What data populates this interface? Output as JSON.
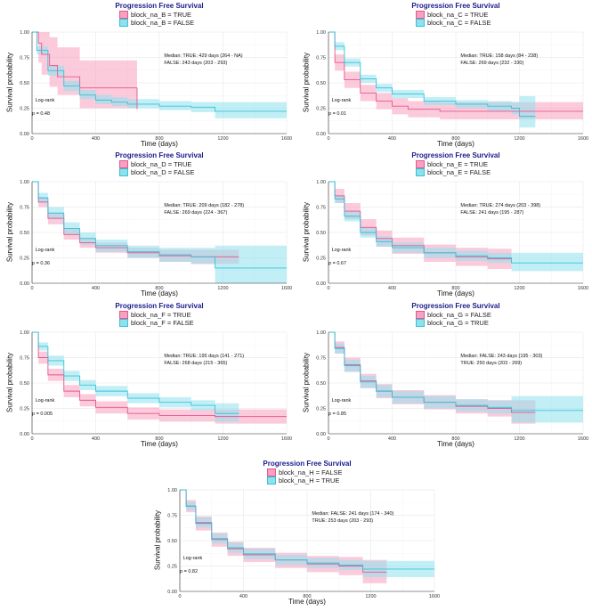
{
  "chart_data": [
    {
      "type": "line",
      "title": "Progression Free Survival",
      "xlabel": "Time (days)",
      "ylabel": "Survival probability",
      "xlim": [
        0,
        1600
      ],
      "ylim": [
        0,
        1
      ],
      "xticks": [
        "0",
        "400",
        "800",
        "1200",
        "1600"
      ],
      "yticks": [
        "0.00",
        "0.25",
        "0.50",
        "0.75",
        "1.00"
      ],
      "legend_position": "top",
      "grid": true,
      "test_label": "Log-rank",
      "p_value": "p = 0.48",
      "median_lines": [
        "Median: TRUE: 429 days (264 - NA)",
        "FALSE: 243 days (203 - 293)"
      ],
      "series": [
        {
          "name": "block_na_B = TRUE",
          "color": "#e8558c",
          "fill": "#f7a1c0",
          "x": [
            0,
            40,
            60,
            110,
            160,
            260,
            300,
            450,
            620,
            660
          ],
          "y": [
            1.0,
            0.89,
            0.78,
            0.67,
            0.56,
            0.56,
            0.45,
            0.45,
            0.45,
            0.24
          ],
          "lo": [
            1.0,
            0.7,
            0.58,
            0.46,
            0.38,
            0.38,
            0.25,
            0.25,
            0.25,
            0.05
          ],
          "hi": [
            1.0,
            1.0,
            1.0,
            0.95,
            0.85,
            0.85,
            0.72,
            0.72,
            0.72,
            0.55
          ]
        },
        {
          "name": "block_na_B = FALSE",
          "color": "#35c2d8",
          "fill": "#8fe1ee",
          "x": [
            0,
            30,
            100,
            200,
            300,
            400,
            500,
            600,
            800,
            1000,
            1150,
            1600
          ],
          "y": [
            1.0,
            0.82,
            0.62,
            0.47,
            0.38,
            0.33,
            0.31,
            0.29,
            0.27,
            0.26,
            0.22,
            0.22
          ],
          "lo": [
            1.0,
            0.78,
            0.57,
            0.42,
            0.34,
            0.29,
            0.27,
            0.25,
            0.23,
            0.21,
            0.15,
            0.15
          ],
          "hi": [
            1.0,
            0.86,
            0.67,
            0.52,
            0.43,
            0.38,
            0.36,
            0.34,
            0.32,
            0.31,
            0.31,
            0.31
          ]
        }
      ]
    },
    {
      "type": "line",
      "title": "Progression Free Survival",
      "xlabel": "Time (days)",
      "ylabel": "Survival probability",
      "xlim": [
        0,
        1600
      ],
      "ylim": [
        0,
        1
      ],
      "xticks": [
        "0",
        "400",
        "800",
        "1200",
        "1600"
      ],
      "yticks": [
        "0.00",
        "0.25",
        "0.50",
        "0.75",
        "1.00"
      ],
      "legend_position": "top",
      "grid": true,
      "test_label": "Log-rank",
      "p_value": "p = 0.01",
      "median_lines": [
        "Median: TRUE: 158 days (84 - 238)",
        "FALSE: 269 days (232 - 330)"
      ],
      "series": [
        {
          "name": "block_na_C = TRUE",
          "color": "#e8558c",
          "fill": "#f7a1c0",
          "x": [
            0,
            40,
            100,
            200,
            300,
            400,
            500,
            700,
            900,
            1100,
            1600
          ],
          "y": [
            1.0,
            0.7,
            0.53,
            0.4,
            0.32,
            0.27,
            0.24,
            0.22,
            0.22,
            0.22,
            0.22
          ],
          "lo": [
            1.0,
            0.62,
            0.45,
            0.32,
            0.24,
            0.19,
            0.16,
            0.14,
            0.14,
            0.14,
            0.14
          ],
          "hi": [
            1.0,
            0.78,
            0.61,
            0.48,
            0.4,
            0.35,
            0.32,
            0.31,
            0.31,
            0.31,
            0.31
          ]
        },
        {
          "name": "block_na_C = FALSE",
          "color": "#35c2d8",
          "fill": "#8fe1ee",
          "x": [
            0,
            40,
            100,
            200,
            300,
            400,
            600,
            800,
            1000,
            1150,
            1200,
            1300
          ],
          "y": [
            1.0,
            0.86,
            0.7,
            0.54,
            0.45,
            0.39,
            0.32,
            0.29,
            0.27,
            0.25,
            0.17,
            0.17
          ],
          "lo": [
            1.0,
            0.82,
            0.66,
            0.5,
            0.41,
            0.35,
            0.28,
            0.25,
            0.22,
            0.19,
            0.06,
            0.06
          ],
          "hi": [
            1.0,
            0.9,
            0.74,
            0.58,
            0.49,
            0.43,
            0.36,
            0.33,
            0.32,
            0.31,
            0.37,
            0.37
          ]
        }
      ]
    },
    {
      "type": "line",
      "title": "Progression Free Survival",
      "xlabel": "Time (days)",
      "ylabel": "Survival probability",
      "xlim": [
        0,
        1600
      ],
      "ylim": [
        0,
        1
      ],
      "xticks": [
        "0",
        "400",
        "800",
        "1200",
        "1600"
      ],
      "yticks": [
        "0.00",
        "0.25",
        "0.50",
        "0.75",
        "1.00"
      ],
      "legend_position": "top",
      "grid": true,
      "test_label": "Log-rank",
      "p_value": "p = 0.36",
      "median_lines": [
        "Median: TRUE: 209 days (182 - 278)",
        "FALSE: 269 days (224 - 367)"
      ],
      "series": [
        {
          "name": "block_na_D = TRUE",
          "color": "#e8558c",
          "fill": "#f7a1c0",
          "x": [
            0,
            40,
            100,
            200,
            300,
            400,
            600,
            800,
            1000,
            1300
          ],
          "y": [
            1.0,
            0.8,
            0.64,
            0.48,
            0.4,
            0.35,
            0.3,
            0.27,
            0.26,
            0.26
          ],
          "lo": [
            1.0,
            0.75,
            0.58,
            0.43,
            0.35,
            0.3,
            0.25,
            0.21,
            0.19,
            0.19
          ],
          "hi": [
            1.0,
            0.85,
            0.7,
            0.54,
            0.45,
            0.4,
            0.35,
            0.33,
            0.33,
            0.33
          ]
        },
        {
          "name": "block_na_D = FALSE",
          "color": "#35c2d8",
          "fill": "#8fe1ee",
          "x": [
            0,
            40,
            100,
            200,
            300,
            400,
            600,
            800,
            1000,
            1150,
            1600
          ],
          "y": [
            1.0,
            0.84,
            0.69,
            0.54,
            0.44,
            0.37,
            0.31,
            0.28,
            0.26,
            0.15,
            0.15
          ],
          "lo": [
            1.0,
            0.79,
            0.63,
            0.48,
            0.38,
            0.31,
            0.25,
            0.21,
            0.19,
            0.0,
            0.0
          ],
          "hi": [
            1.0,
            0.89,
            0.75,
            0.6,
            0.5,
            0.43,
            0.37,
            0.35,
            0.35,
            0.37,
            0.37
          ]
        }
      ]
    },
    {
      "type": "line",
      "title": "Progression Free Survival",
      "xlabel": "Time (days)",
      "ylabel": "Survival probability",
      "xlim": [
        0,
        1600
      ],
      "ylim": [
        0,
        1
      ],
      "xticks": [
        "0",
        "400",
        "800",
        "1200",
        "1600"
      ],
      "yticks": [
        "0.00",
        "0.25",
        "0.50",
        "0.75",
        "1.00"
      ],
      "legend_position": "top",
      "grid": true,
      "test_label": "Log-rank",
      "p_value": "p = 0.67",
      "median_lines": [
        "Median: TRUE: 274 days (203 - 398)",
        "FALSE: 241 days (195 - 287)"
      ],
      "series": [
        {
          "name": "block_na_E = TRUE",
          "color": "#e8558c",
          "fill": "#f7a1c0",
          "x": [
            0,
            40,
            100,
            200,
            300,
            400,
            600,
            800,
            1000,
            1150
          ],
          "y": [
            1.0,
            0.86,
            0.71,
            0.55,
            0.44,
            0.37,
            0.3,
            0.26,
            0.24,
            0.24
          ],
          "lo": [
            1.0,
            0.79,
            0.63,
            0.47,
            0.36,
            0.29,
            0.21,
            0.17,
            0.14,
            0.14
          ],
          "hi": [
            1.0,
            0.93,
            0.79,
            0.63,
            0.52,
            0.45,
            0.38,
            0.35,
            0.34,
            0.34
          ]
        },
        {
          "name": "block_na_E = FALSE",
          "color": "#35c2d8",
          "fill": "#8fe1ee",
          "x": [
            0,
            40,
            100,
            200,
            300,
            400,
            600,
            800,
            1000,
            1150,
            1600
          ],
          "y": [
            1.0,
            0.83,
            0.66,
            0.5,
            0.41,
            0.35,
            0.3,
            0.27,
            0.25,
            0.2,
            0.2
          ],
          "lo": [
            1.0,
            0.79,
            0.61,
            0.45,
            0.36,
            0.3,
            0.25,
            0.22,
            0.2,
            0.12,
            0.12
          ],
          "hi": [
            1.0,
            0.87,
            0.71,
            0.55,
            0.46,
            0.4,
            0.35,
            0.32,
            0.3,
            0.3,
            0.3
          ]
        }
      ]
    },
    {
      "type": "line",
      "title": "Progression Free Survival",
      "xlabel": "Time (days)",
      "ylabel": "Survival probability",
      "xlim": [
        0,
        1600
      ],
      "ylim": [
        0,
        1
      ],
      "xticks": [
        "0",
        "400",
        "800",
        "1200",
        "1600"
      ],
      "yticks": [
        "0.00",
        "0.25",
        "0.50",
        "0.75",
        "1.00"
      ],
      "legend_position": "top",
      "grid": true,
      "test_label": "Log-rank",
      "p_value": "p = 0.005",
      "median_lines": [
        "Median: TRUE: 195 days (141 - 271)",
        "FALSE: 268 days (215 - 365)"
      ],
      "series": [
        {
          "name": "block_na_F = TRUE",
          "color": "#e8558c",
          "fill": "#f7a1c0",
          "x": [
            0,
            40,
            100,
            200,
            300,
            400,
            600,
            800,
            1000,
            1150,
            1600
          ],
          "y": [
            1.0,
            0.75,
            0.58,
            0.42,
            0.33,
            0.26,
            0.2,
            0.18,
            0.18,
            0.17,
            0.17
          ],
          "lo": [
            1.0,
            0.69,
            0.52,
            0.36,
            0.27,
            0.2,
            0.14,
            0.12,
            0.12,
            0.1,
            0.1
          ],
          "hi": [
            1.0,
            0.81,
            0.64,
            0.48,
            0.39,
            0.32,
            0.26,
            0.24,
            0.24,
            0.24,
            0.24
          ]
        },
        {
          "name": "block_na_F = FALSE",
          "color": "#35c2d8",
          "fill": "#8fe1ee",
          "x": [
            0,
            40,
            100,
            200,
            300,
            400,
            600,
            800,
            1000,
            1150,
            1300
          ],
          "y": [
            1.0,
            0.86,
            0.72,
            0.57,
            0.48,
            0.42,
            0.35,
            0.31,
            0.28,
            0.2,
            0.2
          ],
          "lo": [
            1.0,
            0.82,
            0.67,
            0.52,
            0.43,
            0.37,
            0.3,
            0.26,
            0.23,
            0.12,
            0.12
          ],
          "hi": [
            1.0,
            0.9,
            0.77,
            0.62,
            0.53,
            0.47,
            0.4,
            0.36,
            0.33,
            0.3,
            0.3
          ]
        }
      ]
    },
    {
      "type": "line",
      "title": "Progression Free Survival",
      "xlabel": "Time (days)",
      "ylabel": "Survival probability",
      "xlim": [
        0,
        1600
      ],
      "ylim": [
        0,
        1
      ],
      "xticks": [
        "0",
        "400",
        "800",
        "1200",
        "1600"
      ],
      "yticks": [
        "0.00",
        "0.25",
        "0.50",
        "0.75",
        "1.00"
      ],
      "legend_position": "top",
      "grid": true,
      "test_label": "Log-rank",
      "p_value": "p = 0.85",
      "median_lines": [
        "Median: FALSE: 243 days (195 - 303)",
        "TRUE: 250 days (203 - 269)"
      ],
      "series": [
        {
          "name": "block_na_G = FALSE",
          "color": "#e8558c",
          "fill": "#f7a1c0",
          "x": [
            0,
            40,
            100,
            200,
            300,
            400,
            600,
            800,
            1000,
            1150,
            1300
          ],
          "y": [
            1.0,
            0.85,
            0.68,
            0.52,
            0.42,
            0.36,
            0.31,
            0.27,
            0.25,
            0.21,
            0.21
          ],
          "lo": [
            1.0,
            0.79,
            0.61,
            0.45,
            0.35,
            0.29,
            0.24,
            0.2,
            0.17,
            0.1,
            0.1
          ],
          "hi": [
            1.0,
            0.91,
            0.75,
            0.59,
            0.49,
            0.43,
            0.38,
            0.34,
            0.33,
            0.33,
            0.33
          ]
        },
        {
          "name": "block_na_G = TRUE",
          "color": "#35c2d8",
          "fill": "#8fe1ee",
          "x": [
            0,
            40,
            100,
            200,
            300,
            400,
            600,
            800,
            1000,
            1150,
            1600
          ],
          "y": [
            1.0,
            0.84,
            0.67,
            0.51,
            0.42,
            0.36,
            0.31,
            0.28,
            0.26,
            0.23,
            0.23
          ],
          "lo": [
            1.0,
            0.79,
            0.61,
            0.45,
            0.36,
            0.3,
            0.25,
            0.22,
            0.2,
            0.11,
            0.11
          ],
          "hi": [
            1.0,
            0.89,
            0.73,
            0.57,
            0.48,
            0.42,
            0.37,
            0.34,
            0.33,
            0.37,
            0.37
          ]
        }
      ]
    },
    {
      "type": "line",
      "title": "Progression Free Survival",
      "xlabel": "Time (days)",
      "ylabel": "Survival probability",
      "xlim": [
        0,
        1600
      ],
      "ylim": [
        0,
        1
      ],
      "xticks": [
        "0",
        "400",
        "800",
        "1200",
        "1600"
      ],
      "yticks": [
        "0.00",
        "0.25",
        "0.50",
        "0.75",
        "1.00"
      ],
      "legend_position": "top",
      "grid": true,
      "test_label": "Log-rank",
      "p_value": "p = 0.82",
      "median_lines": [
        "Median: FALSE: 241 days (174 - 340)",
        "TRUE: 253 days (203 - 293)"
      ],
      "series": [
        {
          "name": "block_na_H = FALSE",
          "color": "#e8558c",
          "fill": "#f7a1c0",
          "x": [
            0,
            40,
            100,
            200,
            300,
            400,
            600,
            800,
            1000,
            1150,
            1300
          ],
          "y": [
            1.0,
            0.84,
            0.67,
            0.51,
            0.42,
            0.36,
            0.31,
            0.27,
            0.25,
            0.19,
            0.19
          ],
          "lo": [
            1.0,
            0.78,
            0.6,
            0.44,
            0.35,
            0.29,
            0.23,
            0.19,
            0.16,
            0.08,
            0.08
          ],
          "hi": [
            1.0,
            0.9,
            0.74,
            0.58,
            0.49,
            0.43,
            0.38,
            0.35,
            0.34,
            0.31,
            0.31
          ]
        },
        {
          "name": "block_na_H = TRUE",
          "color": "#35c2d8",
          "fill": "#8fe1ee",
          "x": [
            0,
            40,
            100,
            200,
            300,
            400,
            600,
            800,
            1000,
            1150,
            1600
          ],
          "y": [
            1.0,
            0.84,
            0.68,
            0.52,
            0.43,
            0.37,
            0.31,
            0.28,
            0.26,
            0.22,
            0.22
          ],
          "lo": [
            1.0,
            0.8,
            0.63,
            0.47,
            0.38,
            0.32,
            0.26,
            0.23,
            0.21,
            0.14,
            0.14
          ],
          "hi": [
            1.0,
            0.88,
            0.73,
            0.57,
            0.48,
            0.42,
            0.36,
            0.33,
            0.31,
            0.3,
            0.3
          ]
        }
      ]
    }
  ]
}
